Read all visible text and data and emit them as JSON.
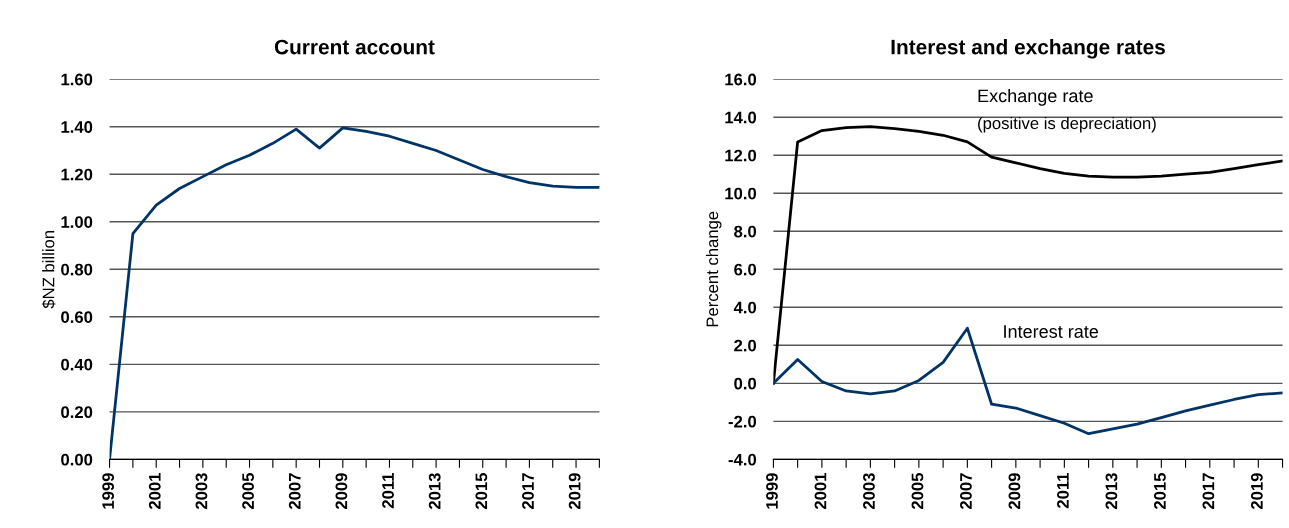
{
  "chart_data": [
    {
      "type": "line",
      "title": "Current account",
      "ylabel": "$NZ billion",
      "categories": [
        "1999",
        null,
        "2001",
        null,
        "2003",
        null,
        "2005",
        null,
        "2007",
        null,
        "2009",
        null,
        "2011",
        null,
        "2013",
        null,
        "2015",
        null,
        "2017",
        null,
        "2019",
        null
      ],
      "series": [
        {
          "color": "#003366",
          "values": [
            0.0,
            0.95,
            1.07,
            1.14,
            1.19,
            1.24,
            1.28,
            1.33,
            1.39,
            1.31,
            1.395,
            1.38,
            1.36,
            1.33,
            1.3,
            1.26,
            1.22,
            1.19,
            1.165,
            1.15,
            1.145,
            1.145
          ]
        }
      ],
      "ylim": [
        0,
        1.6
      ],
      "yticks": [
        {
          "value": 0,
          "label": "0.00"
        },
        {
          "value": 0.2,
          "label": "0.20"
        },
        {
          "value": 0.4,
          "label": "0.40"
        },
        {
          "value": 0.6,
          "label": "0.60"
        },
        {
          "value": 0.8,
          "label": "0.80"
        },
        {
          "value": 1.0,
          "label": "1.00"
        },
        {
          "value": 1.2,
          "label": "1.20"
        },
        {
          "value": 1.4,
          "label": "1.40"
        },
        {
          "value": 1.6,
          "label": "1.60"
        }
      ],
      "grid": "y",
      "legend": false
    },
    {
      "type": "line",
      "title": "Interest and exchange rates",
      "ylabel": "Percent change",
      "categories": [
        "1999",
        null,
        "2001",
        null,
        "2003",
        null,
        "2005",
        null,
        "2007",
        null,
        "2009",
        null,
        "2011",
        null,
        "2013",
        null,
        "2015",
        null,
        "2017",
        null,
        "2019",
        null
      ],
      "series": [
        {
          "name": "Exchange rate",
          "color": "#000000",
          "values": [
            0.0,
            12.7,
            13.3,
            13.45,
            13.5,
            13.4,
            13.25,
            13.05,
            12.7,
            11.9,
            11.6,
            11.3,
            11.05,
            10.9,
            10.85,
            10.85,
            10.9,
            11.0,
            11.1,
            11.3,
            11.5,
            11.7
          ]
        },
        {
          "name": "Interest rate",
          "color": "#003366",
          "values": [
            0.0,
            1.25,
            0.1,
            -0.4,
            -0.55,
            -0.4,
            0.15,
            1.1,
            2.9,
            -1.1,
            -1.3,
            -1.7,
            -2.1,
            -2.65,
            -2.4,
            -2.15,
            -1.8,
            -1.45,
            -1.15,
            -0.85,
            -0.6,
            -0.5
          ]
        }
      ],
      "annotations": [
        "(positive is depreciation)"
      ],
      "ylim": [
        -4,
        16
      ],
      "yticks": [
        {
          "value": -4,
          "label": "-4.0"
        },
        {
          "value": -2,
          "label": "-2.0"
        },
        {
          "value": 0,
          "label": "0.0"
        },
        {
          "value": 2,
          "label": "2.0"
        },
        {
          "value": 4,
          "label": "4.0"
        },
        {
          "value": 6,
          "label": "6.0"
        },
        {
          "value": 8,
          "label": "8.0"
        },
        {
          "value": 10,
          "label": "10.0"
        },
        {
          "value": 12,
          "label": "12.0"
        },
        {
          "value": 14,
          "label": "14.0"
        },
        {
          "value": 16,
          "label": "16.0"
        }
      ],
      "grid": "y",
      "legend": false
    }
  ]
}
